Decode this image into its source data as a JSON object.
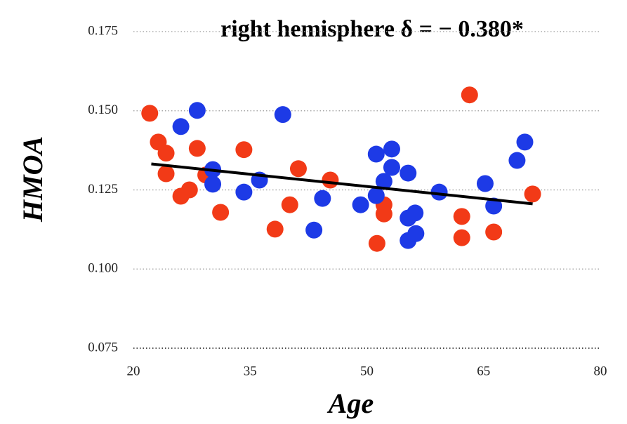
{
  "chart_data": {
    "type": "scatter",
    "title": "right hemisphere δ = − 0.380*",
    "x_label": "Age",
    "y_label": "HMOA",
    "xlim": [
      20,
      80
    ],
    "xticks": [
      20,
      35,
      50,
      65,
      80
    ],
    "ylim": [
      0.075,
      0.175
    ],
    "yticks": [
      0.075,
      {
        "value": 0.1,
        "label": "0.100"
      },
      0.125,
      {
        "value": 0.15,
        "label": "0.150"
      },
      0.175
    ],
    "grid": true,
    "series": [
      {
        "color": "#f23a17",
        "x": [
          22.1,
          23.2,
          24.2,
          24.2,
          26.1,
          27.2,
          28.2,
          29.3,
          31.2,
          34.2,
          38.2,
          40.1,
          41.2,
          45.3,
          51.3,
          52.2,
          52.2,
          62.2,
          62.2,
          63.2,
          66.3,
          71.3
        ],
        "values": [
          0.1492,
          0.1401,
          0.1366,
          0.1301,
          0.123,
          0.125,
          0.1381,
          0.1297,
          0.1179,
          0.1377,
          0.1126,
          0.1203,
          0.1317,
          0.1281,
          0.1081,
          0.1203,
          0.1174,
          0.1166,
          0.1099,
          0.155,
          0.1117,
          0.1237
        ]
      },
      {
        "color": "#1d3ae6",
        "x": [
          26.1,
          28.2,
          30.2,
          30.2,
          34.2,
          36.2,
          39.2,
          43.2,
          44.3,
          49.2,
          51.2,
          51.2,
          52.2,
          53.2,
          53.2,
          55.3,
          55.3,
          56.2,
          55.3,
          56.3,
          59.3,
          65.2,
          66.3,
          69.3,
          70.3
        ],
        "values": [
          0.145,
          0.1501,
          0.1314,
          0.1268,
          0.1243,
          0.1281,
          0.1488,
          0.1123,
          0.1223,
          0.1203,
          0.1363,
          0.1232,
          0.1277,
          0.1379,
          0.1321,
          0.1303,
          0.1161,
          0.1177,
          0.109,
          0.1112,
          0.1243,
          0.127,
          0.1199,
          0.1343,
          0.1401
        ]
      }
    ],
    "fit": {
      "color": "#000000",
      "x": [
        22.3,
        71.3
      ],
      "values": [
        0.1332,
        0.1206
      ]
    }
  }
}
